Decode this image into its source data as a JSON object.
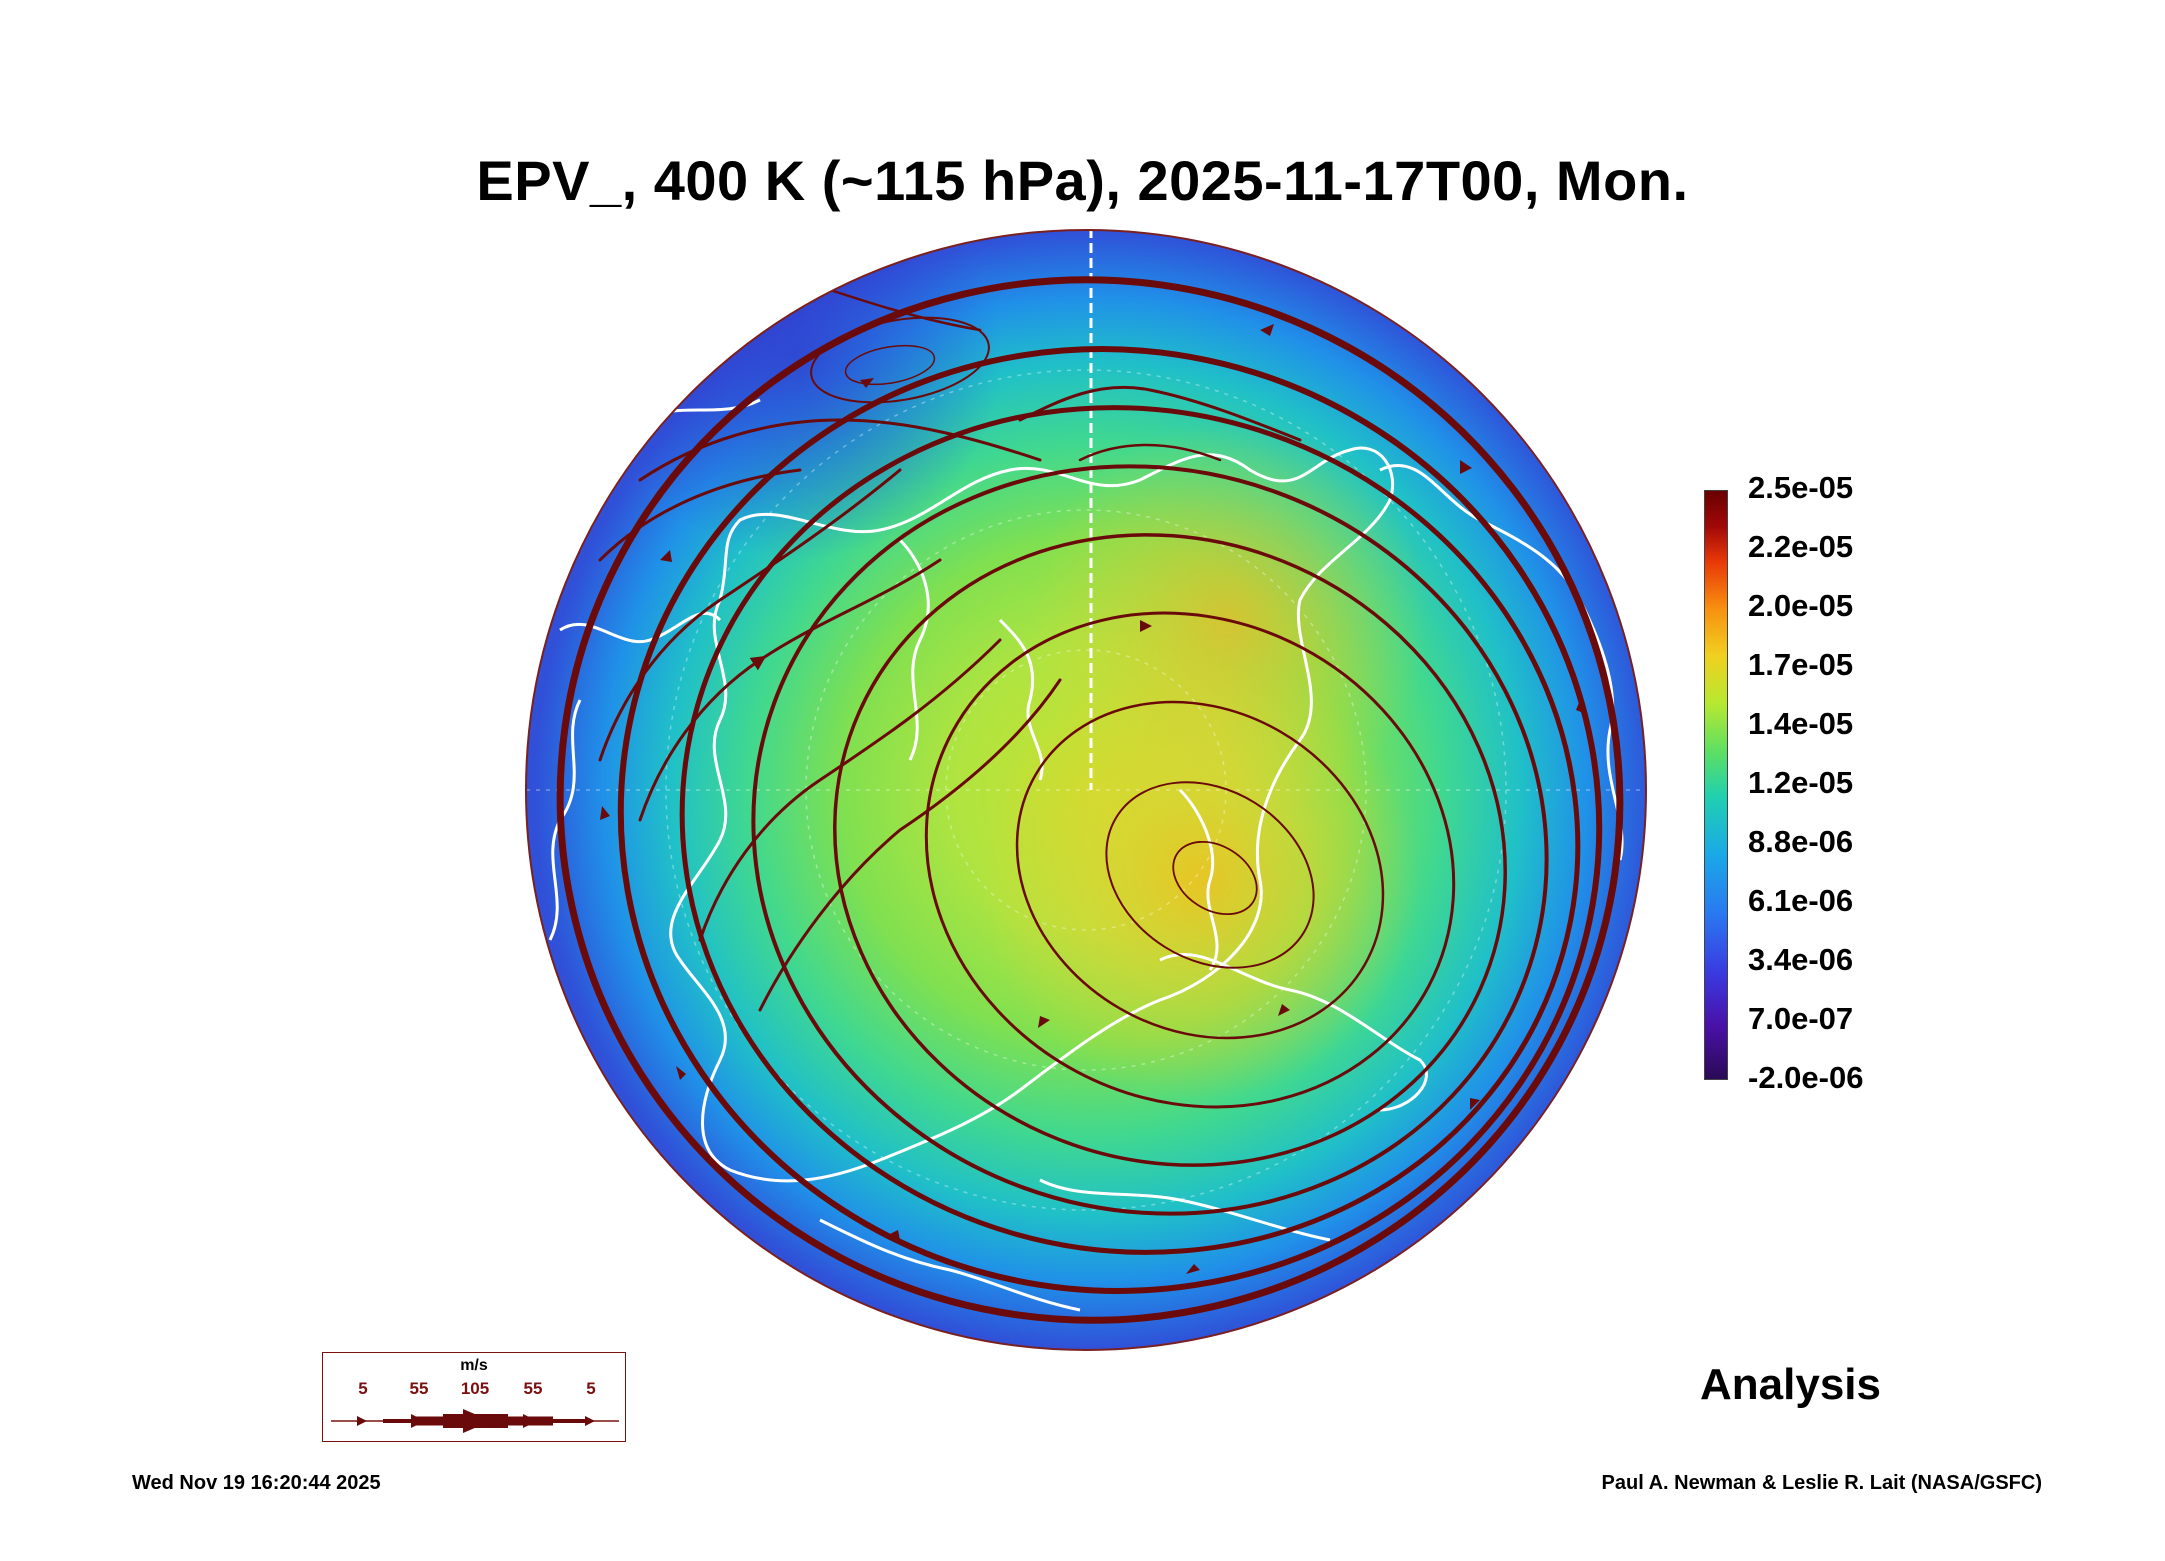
{
  "title": "EPV_, 400 K (~115 hPa), 2025-11-17T00, Mon.",
  "colorbar": {
    "labels": [
      "2.5e-05",
      "2.2e-05",
      "2.0e-05",
      "1.7e-05",
      "1.4e-05",
      "1.2e-05",
      "8.8e-06",
      "6.1e-06",
      "3.4e-06",
      "7.0e-07",
      "-2.0e-06"
    ],
    "max": 2.5e-05,
    "min": -2e-06,
    "colors": [
      "#6a0000",
      "#a00808",
      "#e83808",
      "#f89010",
      "#f0d020",
      "#b8e830",
      "#60e060",
      "#20d0b0",
      "#1aa8e8",
      "#2a78f0",
      "#3a3ae0",
      "#4a10a8",
      "#2a0a55"
    ]
  },
  "wind_legend": {
    "units": "m/s",
    "ticks": [
      "5",
      "55",
      "105",
      "55",
      "5"
    ],
    "color": "#6a0a0a"
  },
  "analysis_label": "Analysis",
  "timestamp": "Wed Nov 19 16:20:44 2025",
  "credit": "Paul A. Newman & Leslie R. Lait (NASA/GSFC)",
  "map": {
    "projection": "polar-stereographic",
    "hemisphere": "north",
    "background_field": "potential vorticity",
    "overlay": "wind streamlines",
    "coastline_color": "#ffffff",
    "streamline_color": "#6a0a0a"
  }
}
